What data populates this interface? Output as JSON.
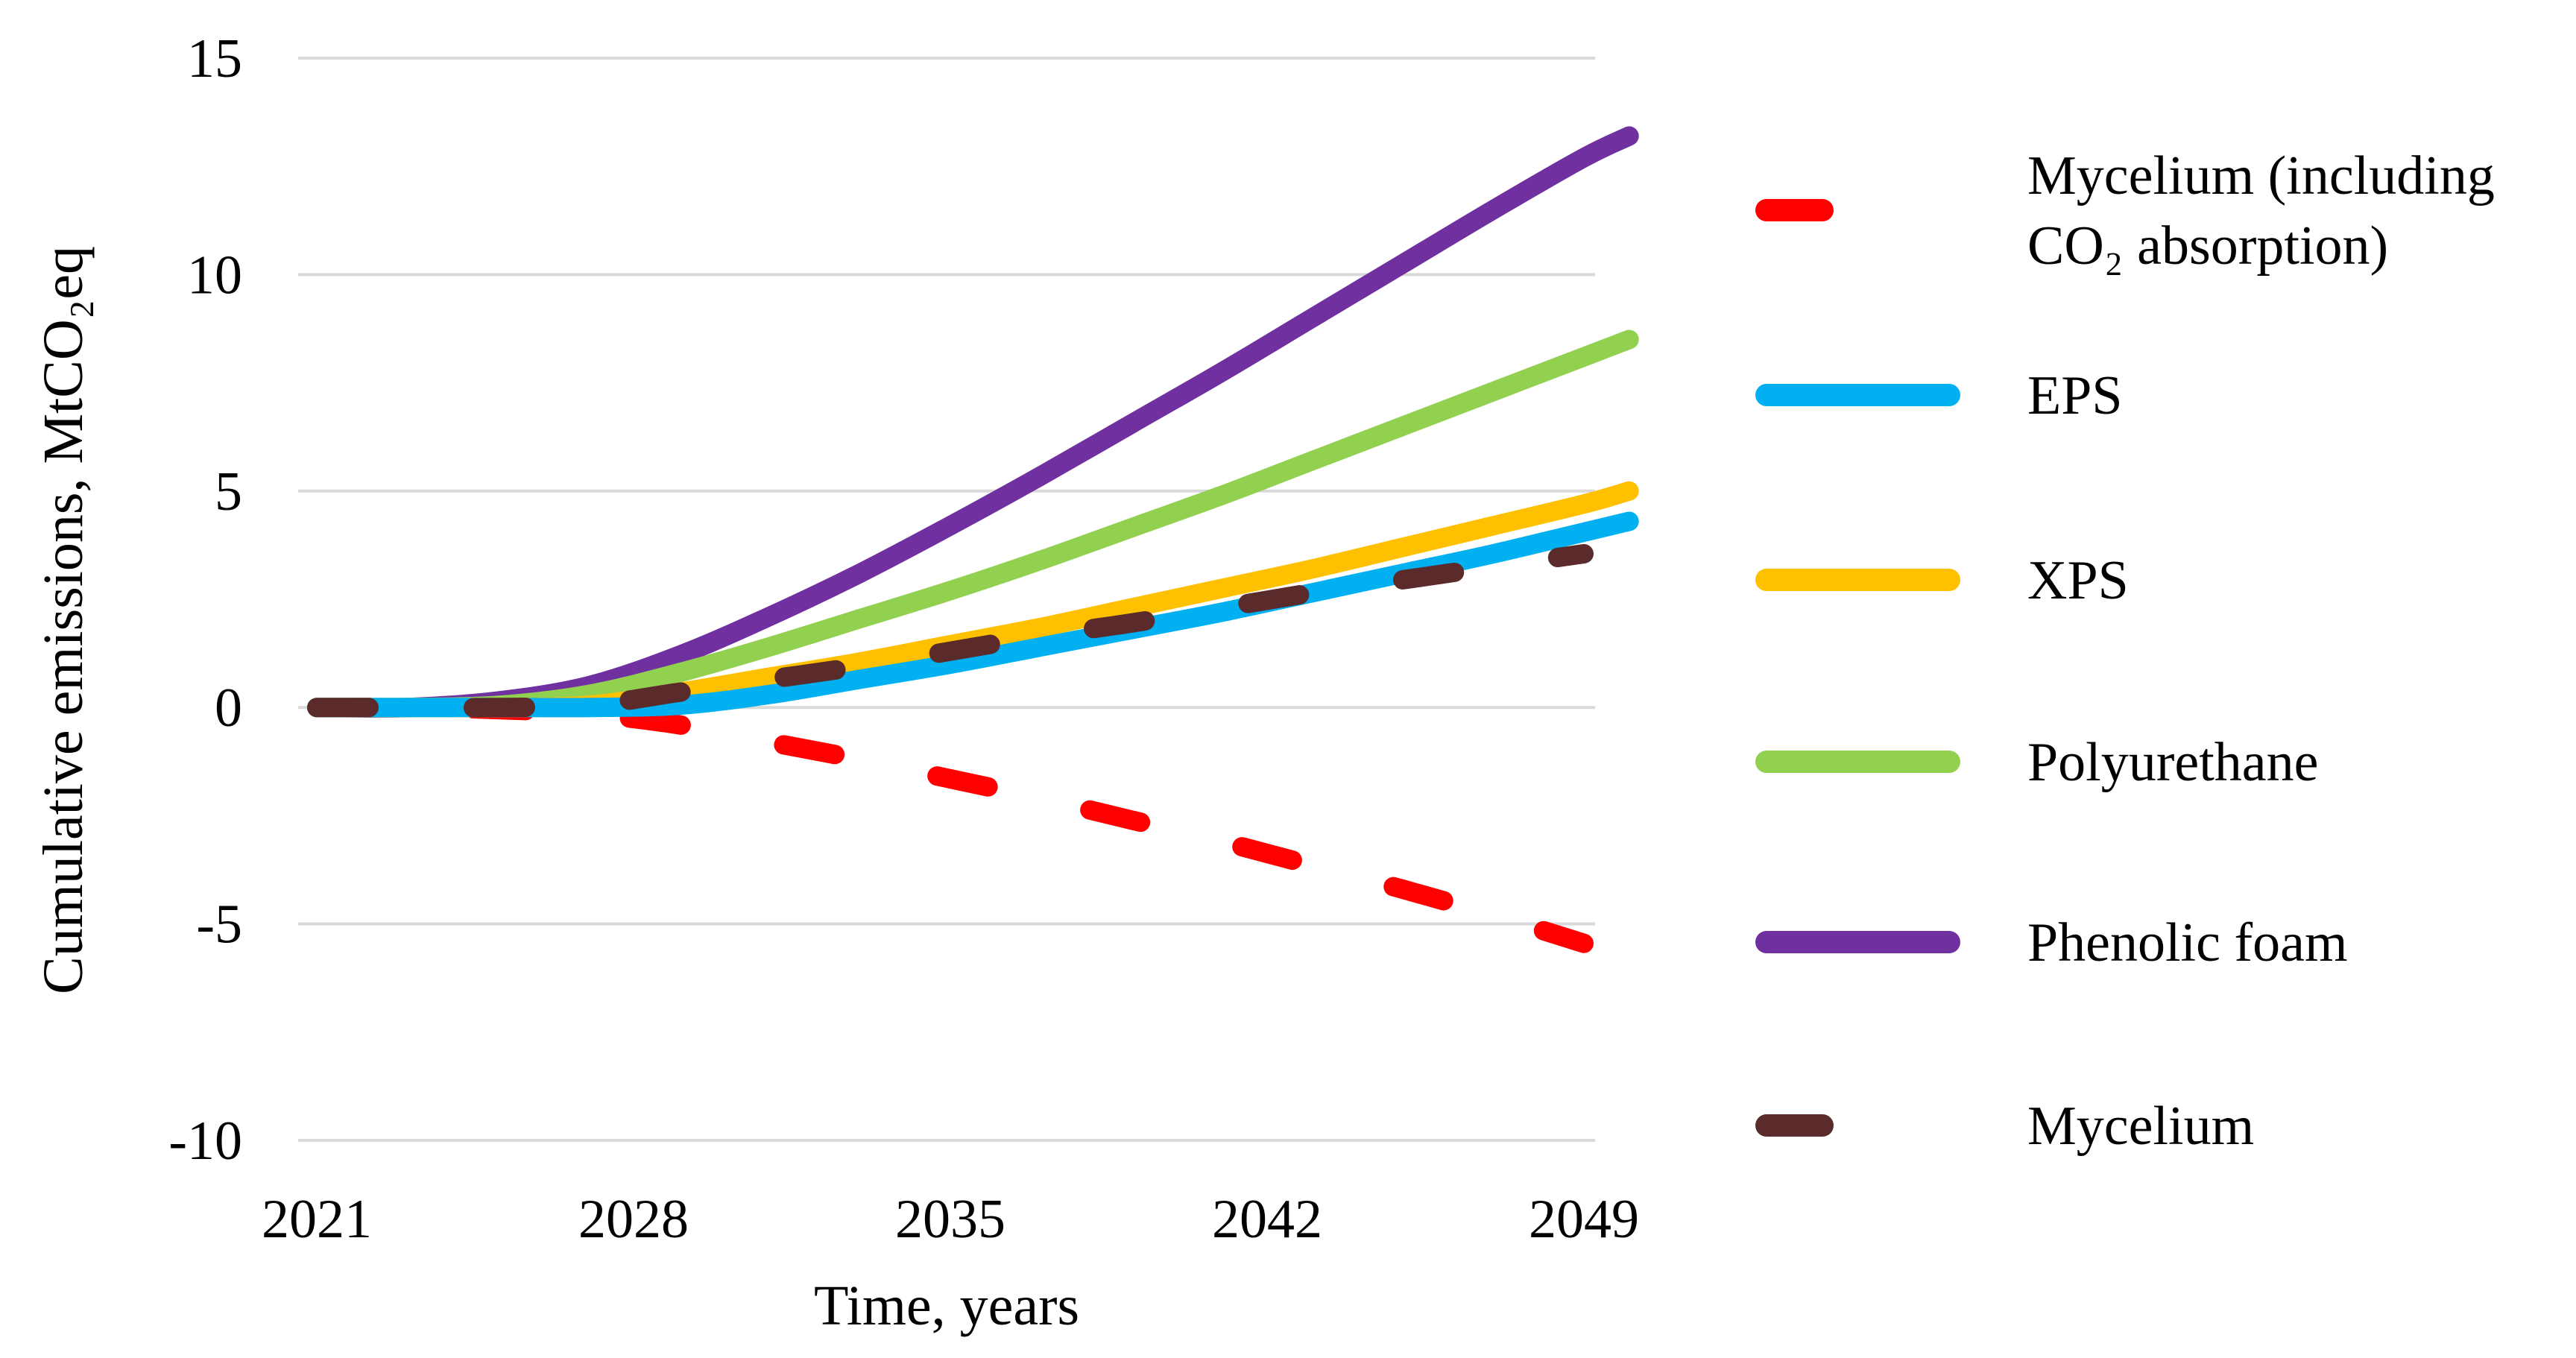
{
  "chart_data": {
    "type": "line",
    "title": "",
    "xlabel": "Time, years",
    "ylabel": "Cumulative emissions, MtCO₂eq",
    "xlim": [
      2021,
      2050
    ],
    "ylim": [
      -10,
      15
    ],
    "x_ticks": [
      "2021",
      "2028",
      "2035",
      "2042",
      "2049"
    ],
    "y_ticks": [
      "-10",
      "-5",
      "0",
      "5",
      "10",
      "15"
    ],
    "grid": "horizontal",
    "legend_position": "right",
    "x": [
      2021,
      2023,
      2025,
      2027,
      2029,
      2031,
      2033,
      2035,
      2037,
      2039,
      2041,
      2043,
      2045,
      2047,
      2049,
      2050
    ],
    "series": [
      {
        "name": "Mycelium (including CO₂ absorption)",
        "color": "#ff0000",
        "dash": "dashed",
        "values": [
          0,
          0,
          -0.05,
          -0.15,
          -0.4,
          -0.8,
          -1.2,
          -1.65,
          -2.1,
          -2.6,
          -3.1,
          -3.65,
          -4.2,
          -4.8,
          -5.45,
          null
        ]
      },
      {
        "name": "EPS",
        "color": "#00b0f0",
        "dash": "solid",
        "values": [
          0,
          0,
          0,
          0,
          0.05,
          0.3,
          0.65,
          1.0,
          1.4,
          1.8,
          2.2,
          2.65,
          3.1,
          3.55,
          4.05,
          4.3
        ]
      },
      {
        "name": "XPS",
        "color": "#ffc000",
        "dash": "solid",
        "values": [
          0,
          0,
          0,
          0.05,
          0.35,
          0.7,
          1.05,
          1.45,
          1.85,
          2.3,
          2.75,
          3.2,
          3.7,
          4.2,
          4.7,
          5.0
        ]
      },
      {
        "name": "Polyurethane",
        "color": "#92d050",
        "dash": "solid",
        "values": [
          0,
          0,
          0.05,
          0.3,
          0.8,
          1.4,
          2.05,
          2.7,
          3.4,
          4.15,
          4.9,
          5.7,
          6.5,
          7.3,
          8.1,
          8.5
        ]
      },
      {
        "name": "Phenolic foam",
        "color": "#7030a0",
        "dash": "solid",
        "values": [
          0,
          0,
          0.15,
          0.5,
          1.2,
          2.1,
          3.1,
          4.2,
          5.35,
          6.55,
          7.75,
          9.0,
          10.25,
          11.5,
          12.7,
          13.2
        ]
      },
      {
        "name": "Mycelium",
        "color": "#5b2a2a",
        "dash": "dashed",
        "values": [
          0,
          0,
          0,
          0.05,
          0.35,
          0.65,
          0.95,
          1.3,
          1.65,
          1.95,
          2.3,
          2.65,
          2.95,
          3.25,
          3.55,
          null
        ]
      }
    ]
  }
}
